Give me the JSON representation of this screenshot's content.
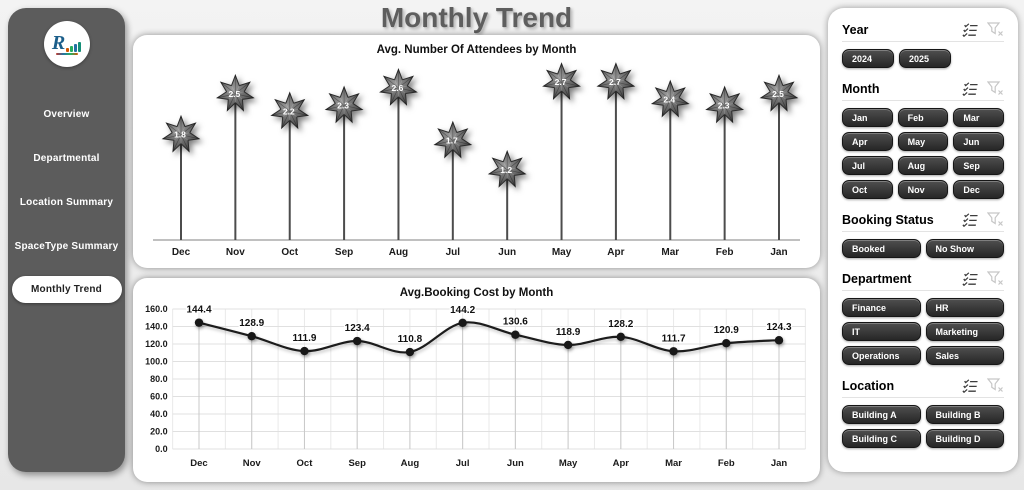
{
  "page": {
    "title": "Monthly Trend"
  },
  "sidebar": {
    "logo": {
      "monogram": "R"
    },
    "items": [
      {
        "label": "Overview",
        "active": false
      },
      {
        "label": "Departmental",
        "active": false
      },
      {
        "label": "Location Summary",
        "active": false
      },
      {
        "label": "SpaceType Summary",
        "active": false
      },
      {
        "label": "Monthly Trend",
        "active": true
      }
    ]
  },
  "filters": [
    {
      "title": "Year",
      "layout": "inline",
      "options": [
        "2024",
        "2025"
      ]
    },
    {
      "title": "Month",
      "layout": "grid-3",
      "options": [
        "Jan",
        "Feb",
        "Mar",
        "Apr",
        "May",
        "Jun",
        "Jul",
        "Aug",
        "Sep",
        "Oct",
        "Nov",
        "Dec"
      ]
    },
    {
      "title": "Booking Status",
      "layout": "grid-2",
      "options": [
        "Booked",
        "No Show"
      ]
    },
    {
      "title": "Department",
      "layout": "grid-2",
      "options": [
        "Finance",
        "HR",
        "IT",
        "Marketing",
        "Operations",
        "Sales"
      ]
    },
    {
      "title": "Location",
      "layout": "grid-2",
      "options": [
        "Building A",
        "Building B",
        "Building C",
        "Building D"
      ]
    }
  ],
  "chart_data": [
    {
      "type": "lollipop",
      "marker": "star",
      "title": "Avg. Number Of Attendees by Month",
      "categories": [
        "Dec",
        "Nov",
        "Oct",
        "Sep",
        "Aug",
        "Jul",
        "Jun",
        "May",
        "Apr",
        "Mar",
        "Feb",
        "Jan"
      ],
      "values": [
        1.8,
        2.5,
        2.2,
        2.3,
        2.6,
        1.7,
        1.2,
        2.7,
        2.7,
        2.4,
        2.3,
        2.5
      ],
      "ylim": [
        0,
        3
      ],
      "data_labels": true,
      "grid": false,
      "legend": "none"
    },
    {
      "type": "line",
      "title": "Avg.Booking Cost by Month",
      "categories": [
        "Dec",
        "Nov",
        "Oct",
        "Sep",
        "Aug",
        "Jul",
        "Jun",
        "May",
        "Apr",
        "Mar",
        "Feb",
        "Jan"
      ],
      "values": [
        144.4,
        128.9,
        111.9,
        123.4,
        110.8,
        144.2,
        130.6,
        118.9,
        128.2,
        111.7,
        120.9,
        124.3
      ],
      "ylim": [
        0,
        160
      ],
      "yticks": [
        0,
        20,
        40,
        60,
        80,
        100,
        120,
        140,
        160
      ],
      "ytick_labels": [
        "0.0",
        "20.0",
        "40.0",
        "60.0",
        "80.0",
        "100.0",
        "120.0",
        "140.0",
        "160.0"
      ],
      "data_labels": true,
      "grid": true,
      "smooth": true,
      "legend": "none"
    }
  ],
  "colors": {
    "sidebar": "#5c5c5c",
    "title": "#5e5e5e",
    "star_fill": "#555555",
    "line": "#1c1c1c",
    "button_top": "#4f4f4f",
    "button_bottom": "#262626",
    "grid": "#e3e3e3"
  }
}
